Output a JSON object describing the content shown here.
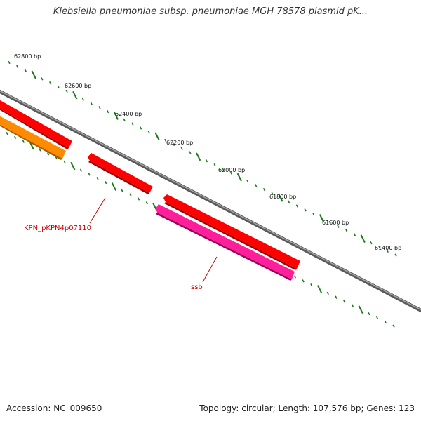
{
  "title": "Klebsiella pneumoniae subsp. pneumoniae MGH 78578 plasmid pK...",
  "footer": {
    "accession": "Accession: NC_009650",
    "summary": "Topology: circular; Length: 107,576 bp; Genes: 123"
  },
  "scale_labels": [
    "62800 bp",
    "62600 bp",
    "62400 bp",
    "62200 bp",
    "62000 bp",
    "61800 bp",
    "61600 bp",
    "61400 bp"
  ],
  "gene_labels": [
    {
      "name": "KPN_pKPN4p07110",
      "color": "#cc0000"
    },
    {
      "name": "ssb",
      "color": "#cc0000"
    }
  ],
  "colors": {
    "backbone": "#808080",
    "tick": "#1a7a1a",
    "gene_red": "#ff0000",
    "gene_orange": "#ff8c00",
    "gene_pink": "#ff1493"
  }
}
